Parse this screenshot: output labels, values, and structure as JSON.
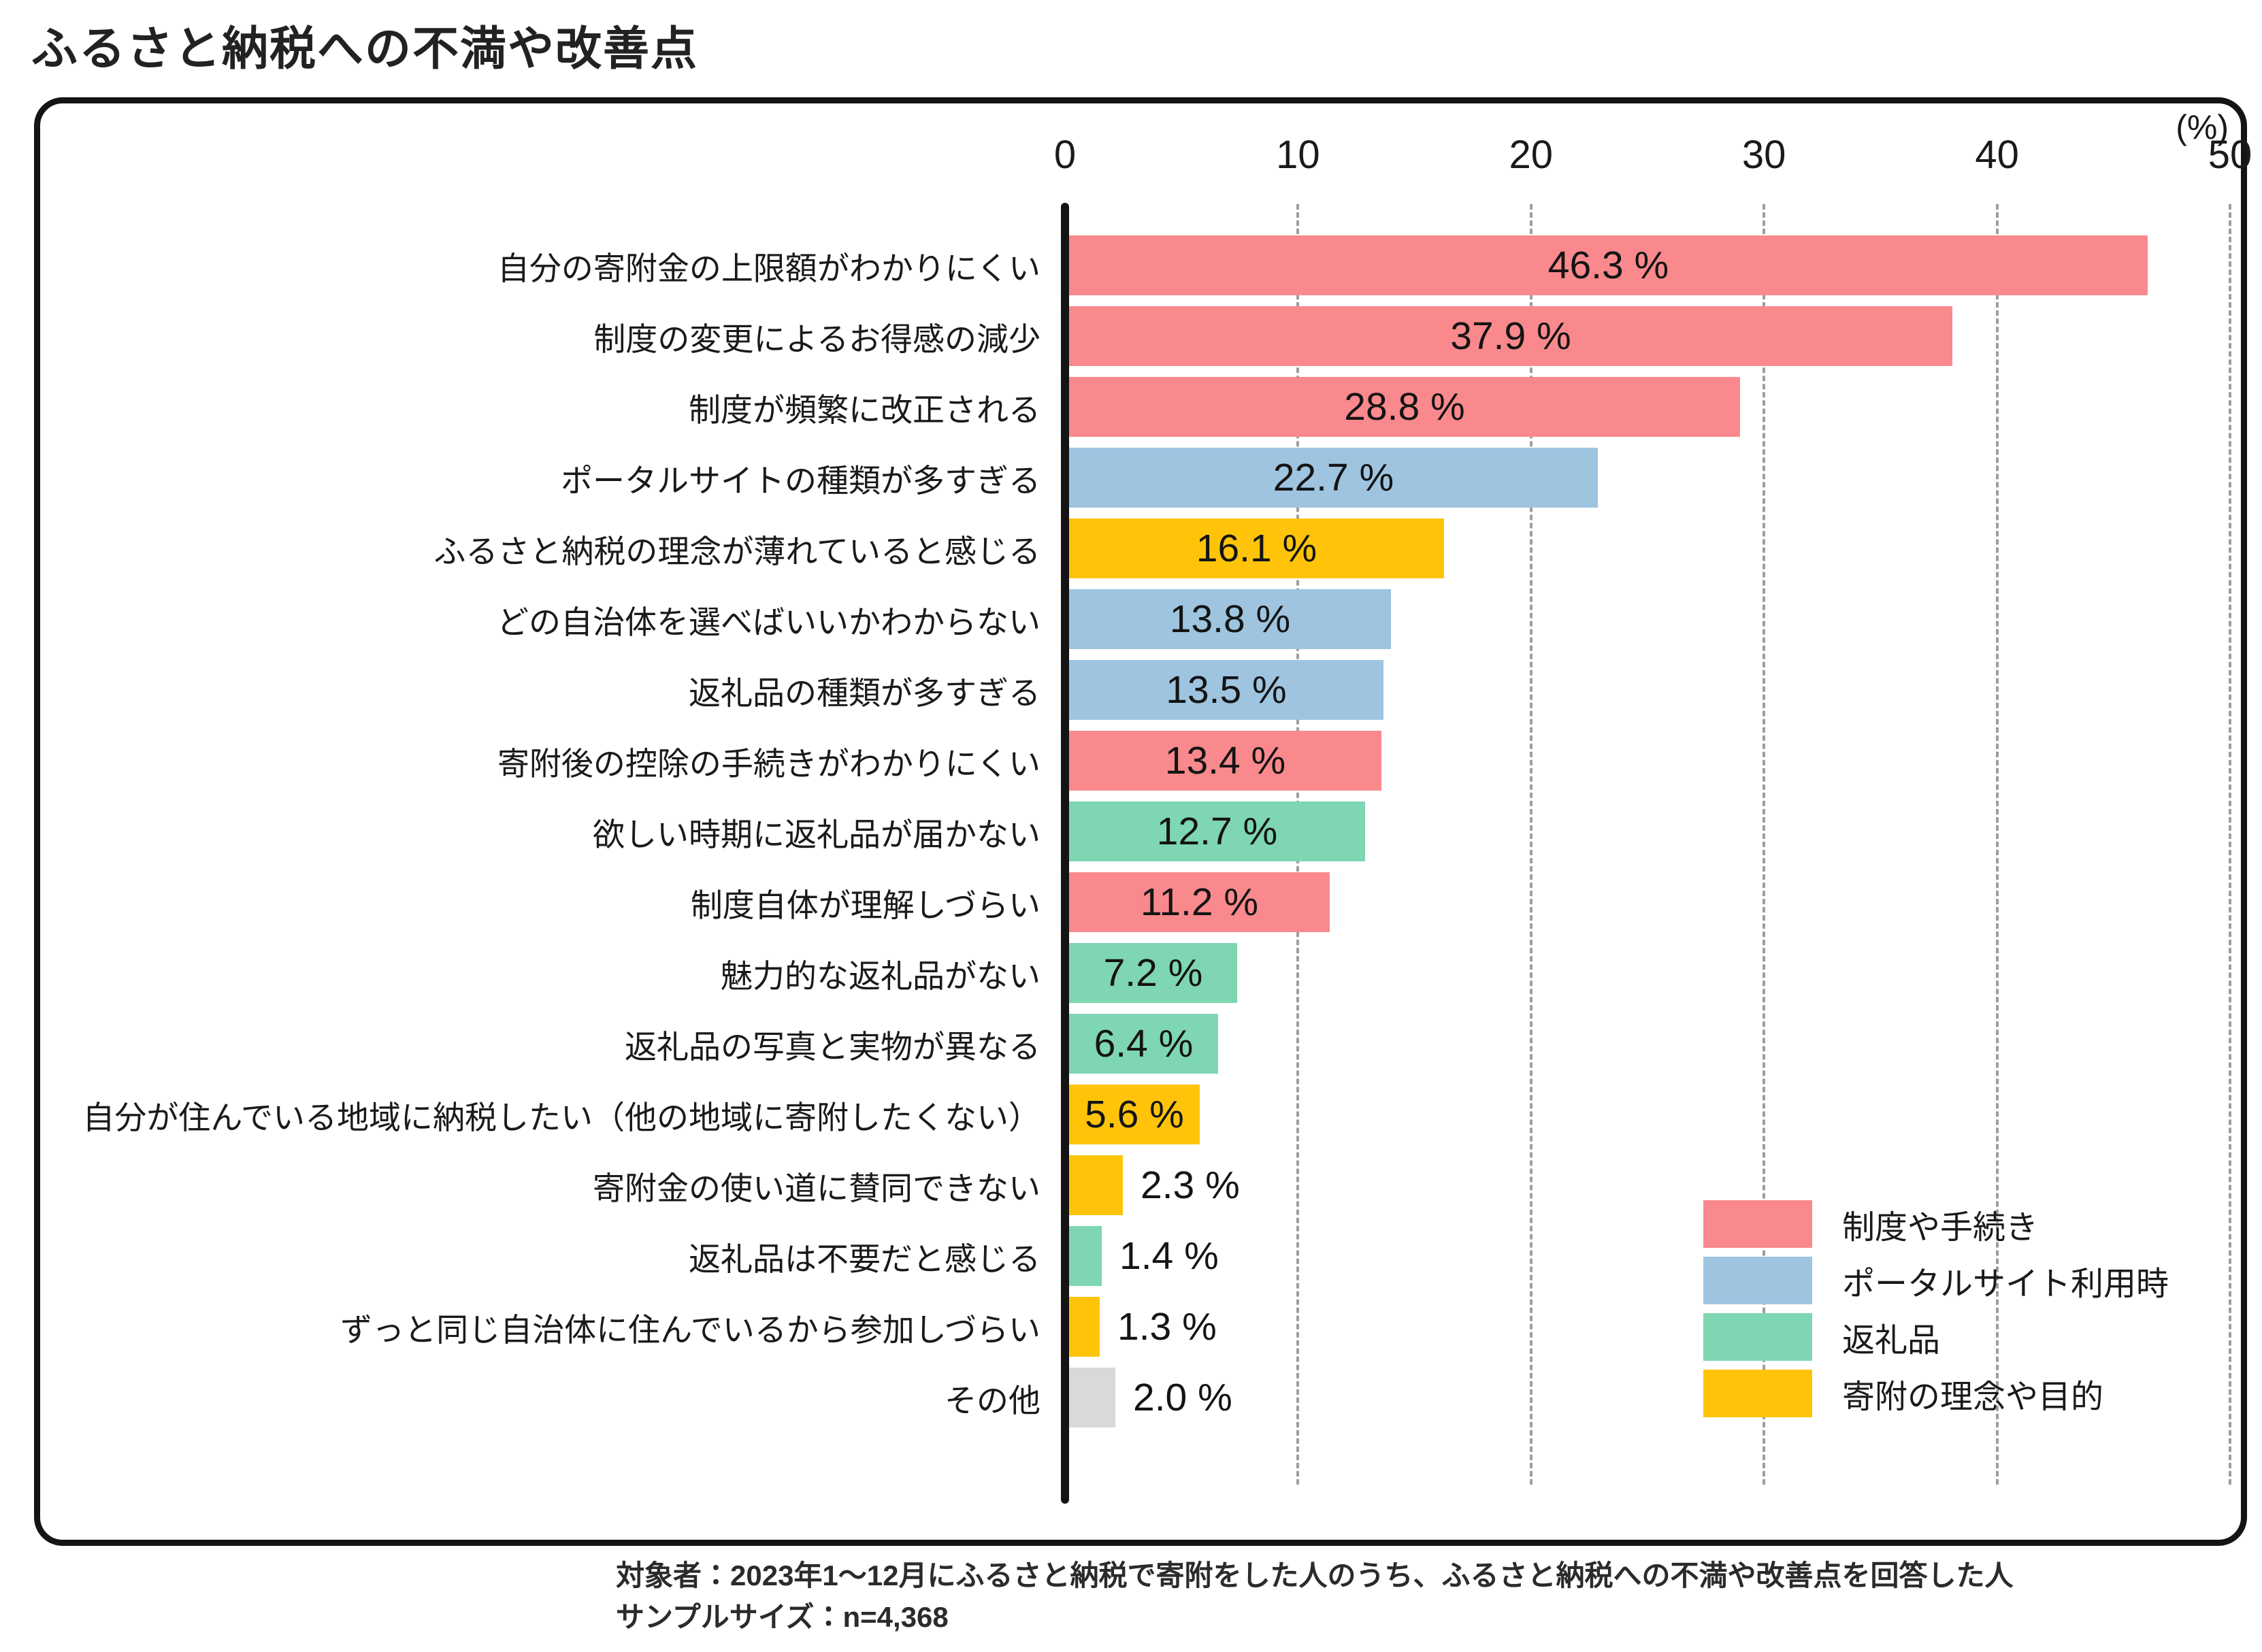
{
  "page": {
    "title": "ふるさと納税への不満や改善点"
  },
  "chart_data": {
    "type": "bar",
    "orientation": "horizontal",
    "title": "ふるさと納税への不満や改善点",
    "unit_label": "(%)",
    "xlim": [
      0,
      50
    ],
    "xticks": [
      0,
      10,
      20,
      30,
      40,
      50
    ],
    "grid": "dashed-vertical",
    "legend_position": "bottom-right-inside",
    "series_colors": {
      "制度や手続き": "#F9898C",
      "ポータルサイト利用時": "#9EC4E0",
      "返礼品": "#7ED6B2",
      "寄附の理念や目的": "#FFC40A",
      "その他": "#D9D9D9"
    },
    "legend": [
      "制度や手続き",
      "ポータルサイト利用時",
      "返礼品",
      "寄附の理念や目的"
    ],
    "bars": [
      {
        "label": "自分の寄附金の上限額がわかりにくい",
        "value": 46.3,
        "value_label": "46.3 %",
        "group": "制度や手続き"
      },
      {
        "label": "制度の変更によるお得感の減少",
        "value": 37.9,
        "value_label": "37.9 %",
        "group": "制度や手続き"
      },
      {
        "label": "制度が頻繁に改正される",
        "value": 28.8,
        "value_label": "28.8 %",
        "group": "制度や手続き"
      },
      {
        "label": "ポータルサイトの種類が多すぎる",
        "value": 22.7,
        "value_label": "22.7 %",
        "group": "ポータルサイト利用時"
      },
      {
        "label": "ふるさと納税の理念が薄れていると感じる",
        "value": 16.1,
        "value_label": "16.1 %",
        "group": "寄附の理念や目的"
      },
      {
        "label": "どの自治体を選べばいいかわからない",
        "value": 13.8,
        "value_label": "13.8 %",
        "group": "ポータルサイト利用時"
      },
      {
        "label": "返礼品の種類が多すぎる",
        "value": 13.5,
        "value_label": "13.5 %",
        "group": "ポータルサイト利用時"
      },
      {
        "label": "寄附後の控除の手続きがわかりにくい",
        "value": 13.4,
        "value_label": "13.4 %",
        "group": "制度や手続き"
      },
      {
        "label": "欲しい時期に返礼品が届かない",
        "value": 12.7,
        "value_label": "12.7 %",
        "group": "返礼品"
      },
      {
        "label": "制度自体が理解しづらい",
        "value": 11.2,
        "value_label": "11.2 %",
        "group": "制度や手続き"
      },
      {
        "label": "魅力的な返礼品がない",
        "value": 7.2,
        "value_label": "7.2 %",
        "group": "返礼品"
      },
      {
        "label": "返礼品の写真と実物が異なる",
        "value": 6.4,
        "value_label": "6.4 %",
        "group": "返礼品"
      },
      {
        "label": "自分が住んでいる地域に納税したい（他の地域に寄附したくない）",
        "value": 5.6,
        "value_label": "5.6 %",
        "group": "寄附の理念や目的"
      },
      {
        "label": "寄附金の使い道に賛同できない",
        "value": 2.3,
        "value_label": "2.3 %",
        "group": "寄附の理念や目的"
      },
      {
        "label": "返礼品は不要だと感じる",
        "value": 1.4,
        "value_label": "1.4 %",
        "group": "返礼品"
      },
      {
        "label": "ずっと同じ自治体に住んでいるから参加しづらい",
        "value": 1.3,
        "value_label": "1.3 %",
        "group": "寄附の理念や目的"
      },
      {
        "label": "その他",
        "value": 2.0,
        "value_label": "2.0 %",
        "group": "その他"
      }
    ]
  },
  "footer": {
    "line1": "対象者：2023年1～12月にふるさと納税で寄附をした人のうち、ふるさと納税への不満や改善点を回答した人",
    "line2": "サンプルサイズ：n=4,368"
  }
}
